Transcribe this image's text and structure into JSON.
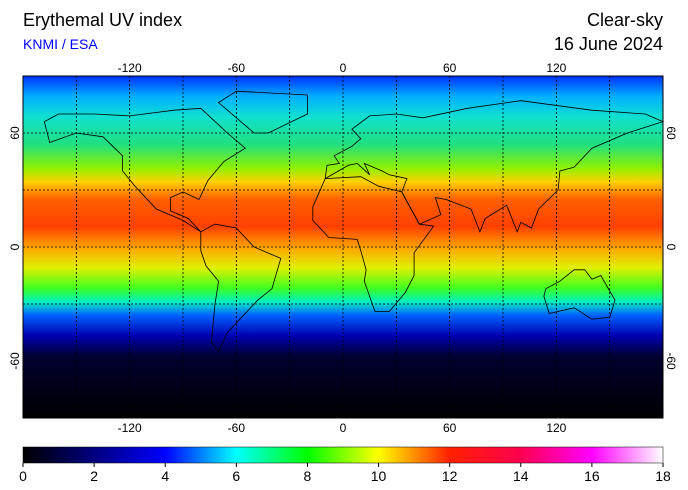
{
  "title": "Erythemal UV index",
  "subtitle": "KNMI / ESA",
  "sky": "Clear-sky",
  "date": "16 June 2024",
  "map": {
    "lonlim": [
      -180,
      180
    ],
    "latlim": [
      -90,
      90
    ],
    "lonticks": [
      -120,
      -60,
      0,
      60,
      120
    ],
    "latticks": [
      60,
      0,
      -60
    ],
    "grid": true
  },
  "colorbar": {
    "range": [
      0,
      18
    ],
    "ticks": [
      0,
      2,
      4,
      6,
      8,
      10,
      12,
      14,
      16,
      18
    ],
    "stops": [
      {
        "value": 0,
        "color": "#000000"
      },
      {
        "value": 2,
        "color": "#000080"
      },
      {
        "value": 4,
        "color": "#0000ff"
      },
      {
        "value": 6,
        "color": "#00ffff"
      },
      {
        "value": 8,
        "color": "#00ff00"
      },
      {
        "value": 10,
        "color": "#ffff00"
      },
      {
        "value": 12,
        "color": "#ff2000"
      },
      {
        "value": 14,
        "color": "#ff0050"
      },
      {
        "value": 16,
        "color": "#ff00ff"
      },
      {
        "value": 18,
        "color": "#ffffff"
      }
    ]
  }
}
